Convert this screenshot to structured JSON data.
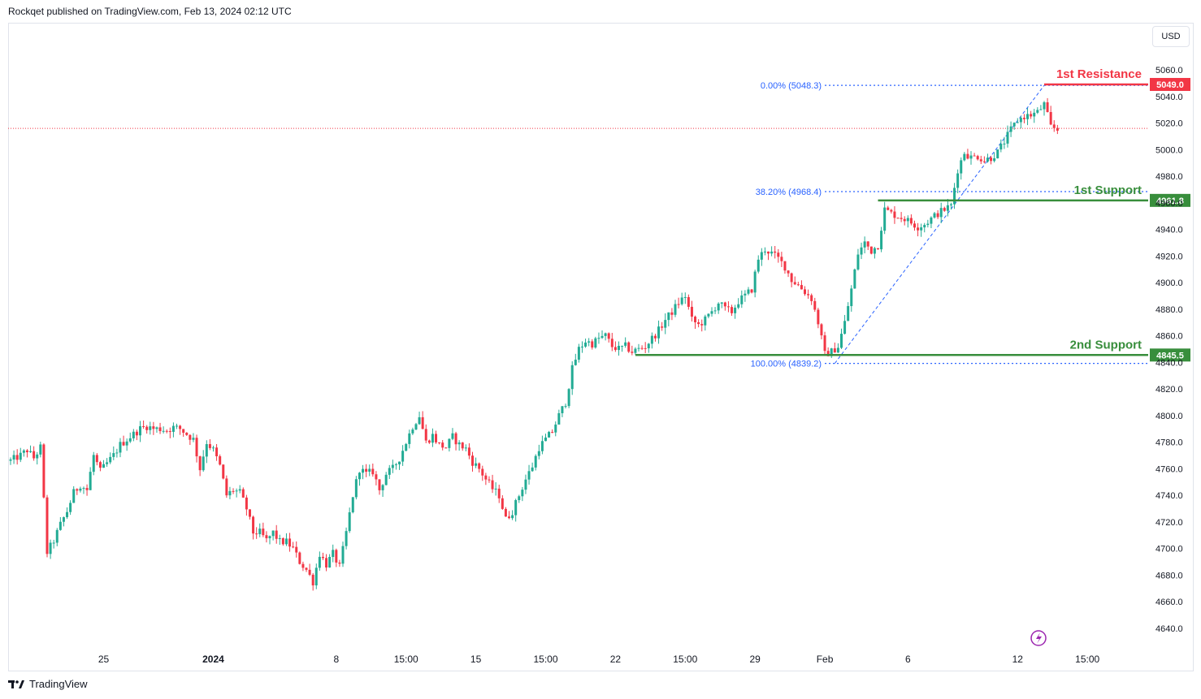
{
  "header": {
    "publisher_line": "Rockqet published on TradingView.com, Feb 13, 2024 02:12 UTC"
  },
  "currency_button": {
    "label": "USD"
  },
  "footer": {
    "brand": "TradingView",
    "logo_icon": "tradingview-logo-icon"
  },
  "replay_icon": "lightning-icon",
  "chart_data": {
    "type": "candlestick",
    "ylim": [
      4620,
      5070
    ],
    "y_ticks": [
      4640,
      4660,
      4680,
      4700,
      4720,
      4740,
      4760,
      4780,
      4800,
      4820,
      4840,
      4860,
      4880,
      4900,
      4920,
      4940,
      4960,
      4980,
      5000,
      5020,
      5040,
      5060
    ],
    "x_ticks": [
      {
        "label": "25",
        "bar": 28,
        "bold": false
      },
      {
        "label": "2024",
        "bar": 61,
        "bold": true
      },
      {
        "label": "8",
        "bar": 98,
        "bold": false
      },
      {
        "label": "15:00",
        "bar": 119,
        "bold": false
      },
      {
        "label": "15",
        "bar": 140,
        "bold": false
      },
      {
        "label": "15:00",
        "bar": 161,
        "bold": false
      },
      {
        "label": "22",
        "bar": 182,
        "bold": false
      },
      {
        "label": "15:00",
        "bar": 203,
        "bold": false
      },
      {
        "label": "29",
        "bar": 224,
        "bold": false
      },
      {
        "label": "Feb",
        "bar": 245,
        "bold": false
      },
      {
        "label": "6",
        "bar": 270,
        "bold": false
      },
      {
        "label": "12",
        "bar": 303,
        "bold": false
      },
      {
        "label": "15:00",
        "bar": 324,
        "bold": false
      }
    ],
    "colors": {
      "up": "#22ab94",
      "down": "#f23645",
      "support": "#388e3c",
      "resistance": "#f23645",
      "fib": "#2962ff",
      "fib_text": "#2962ff",
      "last_price": "#f23645"
    },
    "last_price": 5016,
    "levels": [
      {
        "name": "1st Resistance",
        "value": 5049.0,
        "label": "5049.0",
        "color": "#f23645",
        "start_bar": 311
      },
      {
        "name": "1st Support",
        "value": 4961.8,
        "label": "4961.8",
        "color": "#388e3c",
        "start_bar": 261
      },
      {
        "name": "2nd Support",
        "value": 4845.5,
        "label": "4845.5",
        "color": "#388e3c",
        "start_bar": 188
      }
    ],
    "fib": [
      {
        "label": "0.00% (5048.3)",
        "value": 5048.3,
        "start_bar": 245
      },
      {
        "label": "38.20% (4968.4)",
        "value": 4968.4,
        "start_bar": 245
      },
      {
        "label": "100.00% (4839.2)",
        "value": 4839.2,
        "start_bar": 245
      }
    ],
    "fib_trend": {
      "from_bar": 248,
      "from_value": 4839.2,
      "to_bar": 311,
      "to_value": 5048.3
    },
    "anchors": [
      [
        0,
        4766
      ],
      [
        3,
        4770
      ],
      [
        5,
        4774
      ],
      [
        7,
        4768
      ],
      [
        9,
        4776
      ],
      [
        11,
        4697
      ],
      [
        13,
        4706
      ],
      [
        15,
        4718
      ],
      [
        17,
        4728
      ],
      [
        19,
        4742
      ],
      [
        21,
        4748
      ],
      [
        23,
        4744
      ],
      [
        25,
        4770
      ],
      [
        27,
        4758
      ],
      [
        29,
        4764
      ],
      [
        31,
        4770
      ],
      [
        33,
        4778
      ],
      [
        35,
        4782
      ],
      [
        37,
        4786
      ],
      [
        39,
        4790
      ],
      [
        41,
        4792
      ],
      [
        43,
        4790
      ],
      [
        45,
        4790
      ],
      [
        47,
        4789
      ],
      [
        49,
        4791
      ],
      [
        51,
        4790
      ],
      [
        53,
        4786
      ],
      [
        55,
        4782
      ],
      [
        57,
        4760
      ],
      [
        59,
        4780
      ],
      [
        61,
        4774
      ],
      [
        63,
        4762
      ],
      [
        65,
        4740
      ],
      [
        67,
        4744
      ],
      [
        69,
        4742
      ],
      [
        71,
        4730
      ],
      [
        73,
        4712
      ],
      [
        75,
        4712
      ],
      [
        77,
        4706
      ],
      [
        79,
        4712
      ],
      [
        81,
        4705
      ],
      [
        83,
        4705
      ],
      [
        85,
        4700
      ],
      [
        87,
        4690
      ],
      [
        89,
        4684
      ],
      [
        91,
        4675
      ],
      [
        93,
        4696
      ],
      [
        95,
        4688
      ],
      [
        97,
        4696
      ],
      [
        99,
        4686
      ],
      [
        101,
        4712
      ],
      [
        103,
        4740
      ],
      [
        105,
        4760
      ],
      [
        107,
        4756
      ],
      [
        109,
        4758
      ],
      [
        111,
        4744
      ],
      [
        113,
        4756
      ],
      [
        115,
        4760
      ],
      [
        117,
        4768
      ],
      [
        119,
        4780
      ],
      [
        121,
        4792
      ],
      [
        123,
        4800
      ],
      [
        125,
        4780
      ],
      [
        127,
        4785
      ],
      [
        129,
        4778
      ],
      [
        131,
        4776
      ],
      [
        133,
        4784
      ],
      [
        135,
        4778
      ],
      [
        137,
        4775
      ],
      [
        139,
        4765
      ],
      [
        141,
        4760
      ],
      [
        143,
        4752
      ],
      [
        145,
        4745
      ],
      [
        147,
        4740
      ],
      [
        149,
        4722
      ],
      [
        151,
        4728
      ],
      [
        153,
        4740
      ],
      [
        155,
        4752
      ],
      [
        157,
        4762
      ],
      [
        159,
        4776
      ],
      [
        161,
        4782
      ],
      [
        163,
        4788
      ],
      [
        165,
        4800
      ],
      [
        167,
        4810
      ],
      [
        169,
        4835
      ],
      [
        171,
        4850
      ],
      [
        173,
        4856
      ],
      [
        175,
        4854
      ],
      [
        177,
        4858
      ],
      [
        179,
        4860
      ],
      [
        181,
        4852
      ],
      [
        183,
        4850
      ],
      [
        185,
        4852
      ],
      [
        187,
        4848
      ],
      [
        189,
        4850
      ],
      [
        191,
        4852
      ],
      [
        193,
        4858
      ],
      [
        195,
        4864
      ],
      [
        197,
        4872
      ],
      [
        199,
        4878
      ],
      [
        201,
        4885
      ],
      [
        203,
        4890
      ],
      [
        205,
        4872
      ],
      [
        207,
        4868
      ],
      [
        209,
        4872
      ],
      [
        211,
        4878
      ],
      [
        213,
        4885
      ],
      [
        215,
        4880
      ],
      [
        217,
        4878
      ],
      [
        219,
        4886
      ],
      [
        221,
        4890
      ],
      [
        223,
        4895
      ],
      [
        225,
        4918
      ],
      [
        227,
        4925
      ],
      [
        229,
        4922
      ],
      [
        231,
        4918
      ],
      [
        233,
        4912
      ],
      [
        235,
        4902
      ],
      [
        237,
        4898
      ],
      [
        239,
        4893
      ],
      [
        241,
        4888
      ],
      [
        243,
        4870
      ],
      [
        245,
        4846
      ],
      [
        247,
        4848
      ],
      [
        249,
        4852
      ],
      [
        251,
        4870
      ],
      [
        253,
        4895
      ],
      [
        255,
        4922
      ],
      [
        257,
        4930
      ],
      [
        259,
        4924
      ],
      [
        261,
        4928
      ],
      [
        263,
        4955
      ],
      [
        265,
        4952
      ],
      [
        267,
        4950
      ],
      [
        269,
        4948
      ],
      [
        271,
        4945
      ],
      [
        273,
        4942
      ],
      [
        275,
        4944
      ],
      [
        277,
        4948
      ],
      [
        279,
        4952
      ],
      [
        281,
        4955
      ],
      [
        283,
        4958
      ],
      [
        285,
        4985
      ],
      [
        287,
        4998
      ],
      [
        289,
        4994
      ],
      [
        291,
        4995
      ],
      [
        293,
        4992
      ],
      [
        295,
        4994
      ],
      [
        297,
        4998
      ],
      [
        299,
        5006
      ],
      [
        301,
        5015
      ],
      [
        303,
        5022
      ],
      [
        305,
        5025
      ],
      [
        307,
        5026
      ],
      [
        309,
        5028
      ],
      [
        311,
        5034
      ],
      [
        313,
        5017
      ],
      [
        315,
        5015
      ]
    ]
  }
}
